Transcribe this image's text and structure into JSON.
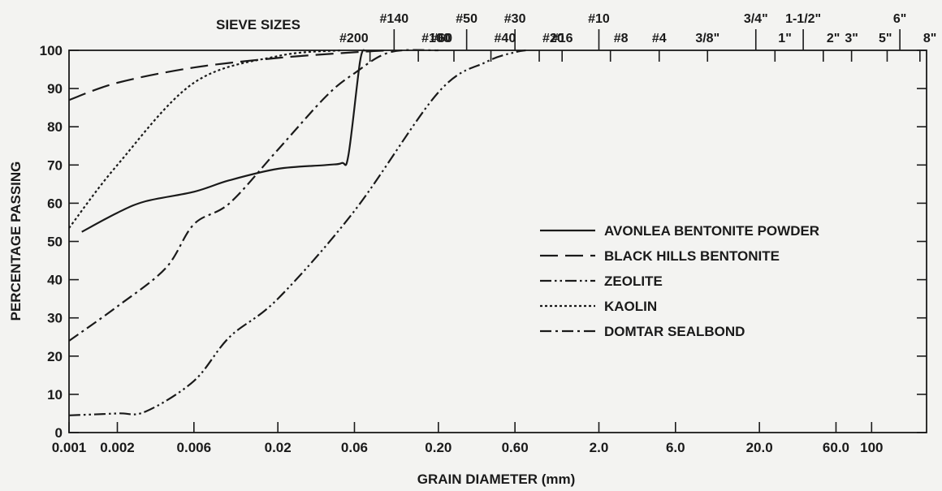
{
  "chart_data": {
    "type": "line",
    "title": "",
    "xlabel": "GRAIN DIAMETER (mm)",
    "ylabel": "PERCENTAGE PASSING",
    "x_scale": "log",
    "xlim": [
      0.001,
      220
    ],
    "ylim": [
      0,
      100
    ],
    "x_ticks": [
      {
        "value": 0.001,
        "label": "0.001"
      },
      {
        "value": 0.002,
        "label": "0.002"
      },
      {
        "value": 0.006,
        "label": "0.006"
      },
      {
        "value": 0.02,
        "label": "0.02"
      },
      {
        "value": 0.06,
        "label": "0.06"
      },
      {
        "value": 0.2,
        "label": "0.20"
      },
      {
        "value": 0.6,
        "label": "0.60"
      },
      {
        "value": 2.0,
        "label": "2.0"
      },
      {
        "value": 6.0,
        "label": "6.0"
      },
      {
        "value": 20.0,
        "label": "20.0"
      },
      {
        "value": 60.0,
        "label": "60.0"
      },
      {
        "value": 100.0,
        "label": "100"
      }
    ],
    "y_ticks": [
      0,
      10,
      20,
      30,
      40,
      50,
      60,
      70,
      80,
      90,
      100
    ],
    "top_axis_title": "SIEVE SIZES",
    "sieve_ticks": [
      {
        "value": 0.075,
        "label": "#200",
        "row": "lower"
      },
      {
        "value": 0.106,
        "label": "#140",
        "row": "upper"
      },
      {
        "value": 0.15,
        "label": "#100",
        "row": "lower"
      },
      {
        "value": 0.25,
        "label": "#60",
        "row": "lower"
      },
      {
        "value": 0.3,
        "label": "#50",
        "row": "upper"
      },
      {
        "value": 0.425,
        "label": "#40",
        "row": "lower"
      },
      {
        "value": 0.6,
        "label": "#30",
        "row": "upper"
      },
      {
        "value": 0.85,
        "label": "#20",
        "row": "lower"
      },
      {
        "value": 1.18,
        "label": "#16",
        "row": "lower"
      },
      {
        "value": 2.0,
        "label": "#10",
        "row": "upper"
      },
      {
        "value": 2.36,
        "label": "#8",
        "row": "lower"
      },
      {
        "value": 4.75,
        "label": "#4",
        "row": "lower"
      },
      {
        "value": 9.5,
        "label": "3/8\"",
        "row": "lower"
      },
      {
        "value": 19.0,
        "label": "3/4\"",
        "row": "upper"
      },
      {
        "value": 25.0,
        "label": "1\"",
        "row": "lower"
      },
      {
        "value": 37.5,
        "label": "1-1/2\"",
        "row": "upper"
      },
      {
        "value": 50.0,
        "label": "2\"",
        "row": "lower"
      },
      {
        "value": 75.0,
        "label": "3\"",
        "row": "lower"
      },
      {
        "value": 125.0,
        "label": "5\"",
        "row": "lower"
      },
      {
        "value": 150.0,
        "label": "6\"",
        "row": "upper"
      },
      {
        "value": 200.0,
        "label": "8\"",
        "row": "lower"
      }
    ],
    "legend_position": "right-middle",
    "grid": false,
    "series": [
      {
        "name": "AVONLEA BENTONITE POWDER",
        "dash": "solid",
        "points": [
          [
            0.0012,
            52.5
          ],
          [
            0.002,
            57.5
          ],
          [
            0.003,
            60.5
          ],
          [
            0.006,
            63
          ],
          [
            0.01,
            66
          ],
          [
            0.02,
            69
          ],
          [
            0.04,
            70
          ],
          [
            0.05,
            70.5
          ],
          [
            0.055,
            72.5
          ],
          [
            0.065,
            97
          ],
          [
            0.07,
            100
          ]
        ]
      },
      {
        "name": "BLACK HILLS BENTONITE",
        "dash": "long-dash",
        "points": [
          [
            0.001,
            87
          ],
          [
            0.002,
            91.5
          ],
          [
            0.006,
            95.5
          ],
          [
            0.02,
            98
          ],
          [
            0.06,
            99.5
          ],
          [
            0.1,
            100
          ]
        ]
      },
      {
        "name": "ZEOLITE",
        "dash": "dash-dot-dot",
        "points": [
          [
            0.001,
            4.5
          ],
          [
            0.002,
            5
          ],
          [
            0.003,
            5.5
          ],
          [
            0.006,
            13.5
          ],
          [
            0.01,
            25
          ],
          [
            0.02,
            35
          ],
          [
            0.06,
            58
          ],
          [
            0.2,
            89
          ],
          [
            0.4,
            97
          ],
          [
            0.6,
            99.5
          ],
          [
            0.7,
            100
          ]
        ]
      },
      {
        "name": "KAOLIN",
        "dash": "dotted",
        "points": [
          [
            0.001,
            53.5
          ],
          [
            0.002,
            70
          ],
          [
            0.006,
            91.5
          ],
          [
            0.02,
            98.5
          ],
          [
            0.05,
            100
          ]
        ]
      },
      {
        "name": "DOMTAR SEALBOND",
        "dash": "dash-dot",
        "points": [
          [
            0.001,
            24
          ],
          [
            0.002,
            33
          ],
          [
            0.004,
            43
          ],
          [
            0.006,
            54.5
          ],
          [
            0.01,
            60
          ],
          [
            0.02,
            74
          ],
          [
            0.04,
            88
          ],
          [
            0.06,
            94
          ],
          [
            0.1,
            99.5
          ],
          [
            0.2,
            100
          ]
        ]
      }
    ]
  }
}
